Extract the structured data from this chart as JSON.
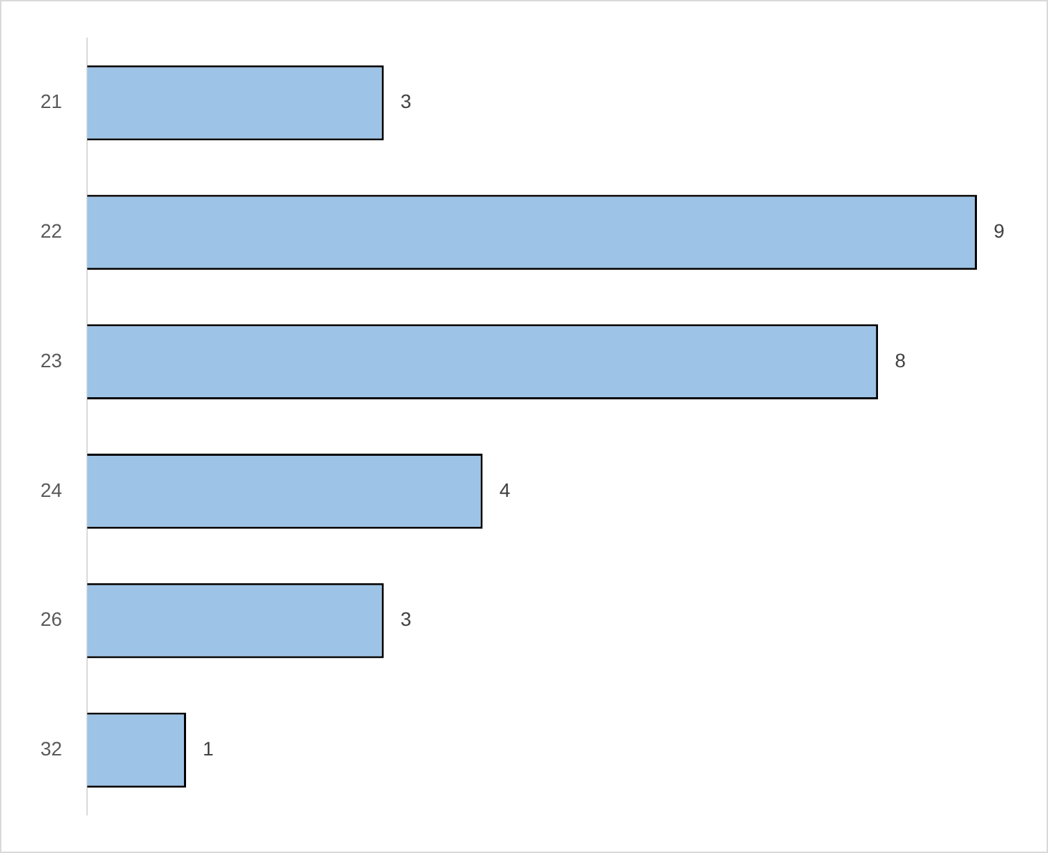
{
  "chart_data": {
    "type": "bar",
    "orientation": "horizontal",
    "categories": [
      "21",
      "22",
      "23",
      "24",
      "26",
      "32"
    ],
    "values": [
      3,
      9,
      8,
      4,
      3,
      1
    ],
    "color": "#9dc3e6",
    "data_labels": true
  }
}
